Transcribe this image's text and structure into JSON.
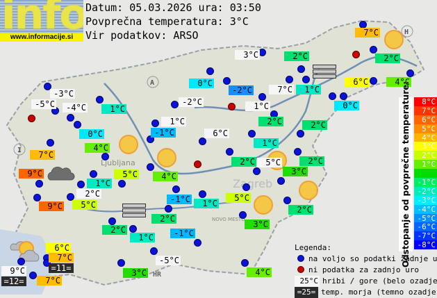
{
  "logo": {
    "text": "info",
    "url": "www.informacije.si"
  },
  "header": {
    "date_line": "Datum: 05.03.2026 ura: 03:50",
    "avg_line": "Povprečna temperatura: 3°C",
    "source_line": "Vir podatkov: ARSO"
  },
  "colors": {
    "mountain": "#f6f6f6",
    "sea": "#2b2b2b",
    "dot_ok": "#0a14d8",
    "dot_missing": "#cc0000",
    "sun": "#f6c63a"
  },
  "stations": [
    {
      "temp": "3°C",
      "bg": "#f6f6f6"
    },
    {
      "temp": "2°C",
      "bg": "#00e070"
    },
    {
      "temp": "0°C",
      "bg": "#00e8ff"
    },
    {
      "temp": "-2°C",
      "bg": "#1a8cff"
    },
    {
      "temp": "7°C",
      "bg": "#f6f6f6"
    },
    {
      "temp": "1°C",
      "bg": "#00e8c4"
    },
    {
      "temp": "6°C",
      "bg": "#ffff00"
    },
    {
      "temp": "2°C",
      "bg": "#00e070"
    },
    {
      "temp": "7°C",
      "bg": "#ffbb00"
    },
    {
      "temp": "4°C",
      "bg": "#66ee00"
    },
    {
      "temp": "0°C",
      "bg": "#00e8ff"
    },
    {
      "temp": "-2°C",
      "bg": "#f6f6f6"
    },
    {
      "temp": "1°C",
      "bg": "#f6f6f6"
    },
    {
      "temp": "2°C",
      "bg": "#00e070"
    },
    {
      "temp": "2°C",
      "bg": "#00e070"
    },
    {
      "temp": "1°C",
      "bg": "#f6f6f6"
    },
    {
      "temp": "-1°C",
      "bg": "#00b8ff"
    },
    {
      "temp": "6°C",
      "bg": "#f6f6f6"
    },
    {
      "temp": "1°C",
      "bg": "#00e8c4"
    },
    {
      "temp": "2°C",
      "bg": "#00e070"
    },
    {
      "temp": "5°C",
      "bg": "#f6f6f6"
    },
    {
      "temp": "3°C",
      "bg": "#22dd00"
    },
    {
      "temp": "2°C",
      "bg": "#00e070"
    },
    {
      "temp": "4°C",
      "bg": "#66ee00"
    },
    {
      "temp": "-3°C",
      "bg": "#f6f6f6"
    },
    {
      "temp": "-5°C",
      "bg": "#f6f6f6"
    },
    {
      "temp": "-4°C",
      "bg": "#f6f6f6"
    },
    {
      "temp": "1°C",
      "bg": "#00e8c4"
    },
    {
      "temp": "0°C",
      "bg": "#00e8ff"
    },
    {
      "temp": "4°C",
      "bg": "#66ee00"
    },
    {
      "temp": "7°C",
      "bg": "#ffbb00"
    },
    {
      "temp": "9°C",
      "bg": "#ff6600"
    },
    {
      "temp": "5°C",
      "bg": "#ccff00"
    },
    {
      "temp": "1°C",
      "bg": "#00e8c4"
    },
    {
      "temp": "2°C",
      "bg": "#f6f6f6"
    },
    {
      "temp": "5°C",
      "bg": "#ccff00"
    },
    {
      "temp": "9°C",
      "bg": "#ff6600"
    },
    {
      "temp": "-1°C",
      "bg": "#00b8ff"
    },
    {
      "temp": "1°C",
      "bg": "#00e8c4"
    },
    {
      "temp": "5°C",
      "bg": "#ccff00"
    },
    {
      "temp": "2°C",
      "bg": "#00e070"
    },
    {
      "temp": "3°C",
      "bg": "#22dd00"
    },
    {
      "temp": "2°C",
      "bg": "#00e070"
    },
    {
      "temp": "2°C",
      "bg": "#00e070"
    },
    {
      "temp": "1°C",
      "bg": "#00e8c4"
    },
    {
      "temp": "-1°C",
      "bg": "#00b8ff"
    },
    {
      "temp": "6°C",
      "bg": "#ffff00"
    },
    {
      "temp": "7°C",
      "bg": "#ffbb00"
    },
    {
      "temp": "=11=",
      "bg": "#2b2b2b"
    },
    {
      "temp": "9°C",
      "bg": "#f6f6f6"
    },
    {
      "temp": "=12=",
      "bg": "#2b2b2b"
    },
    {
      "temp": "7°C",
      "bg": "#ffbb00"
    },
    {
      "temp": "3°C",
      "bg": "#22dd00"
    },
    {
      "temp": "-5°C",
      "bg": "#f6f6f6"
    },
    {
      "temp": "4°C",
      "bg": "#66ee00"
    }
  ],
  "scale": {
    "title": "Odstopanje od povprečne temperature:",
    "rows": [
      {
        "label": "8°C",
        "color": "#ff0000"
      },
      {
        "label": "7°C",
        "color": "#ff3300"
      },
      {
        "label": "6°C",
        "color": "#ff6600"
      },
      {
        "label": "5°C",
        "color": "#ff8c00"
      },
      {
        "label": "4°C",
        "color": "#ffb400"
      },
      {
        "label": "3°C",
        "color": "#ffff00"
      },
      {
        "label": "2°C",
        "color": "#c8ff00"
      },
      {
        "label": "1°C",
        "color": "#66ee00"
      },
      {
        "label": "",
        "color": "#00dd00"
      },
      {
        "label": "-1°C",
        "color": "#00ee66"
      },
      {
        "label": "-2°C",
        "color": "#00eebb"
      },
      {
        "label": "-3°C",
        "color": "#00eeff"
      },
      {
        "label": "-4°C",
        "color": "#00c0ff"
      },
      {
        "label": "-5°C",
        "color": "#0090ff"
      },
      {
        "label": "-6°C",
        "color": "#0066ff"
      },
      {
        "label": "-7°C",
        "color": "#0033ff"
      },
      {
        "label": "-8°C",
        "color": "#0000ff"
      }
    ]
  },
  "legend": {
    "title": "Legenda:",
    "available": "na voljo so podatki zadnje ure",
    "missing": "ni podatka za zadnjo uro",
    "mountain_sample": "25°C",
    "mountain_text": "hribi / gore (belo ozadje)",
    "sea_sample": "=25=",
    "sea_text": "temp. morja (temno ozadje)"
  },
  "map_labels": {
    "zagreb": "Zagreb",
    "ljubljana": "Ljubljana",
    "novo_mesto": "NOVO MESTO",
    "country_a": "A",
    "country_i": "I",
    "country_h": "H",
    "country_hr": "HR"
  }
}
